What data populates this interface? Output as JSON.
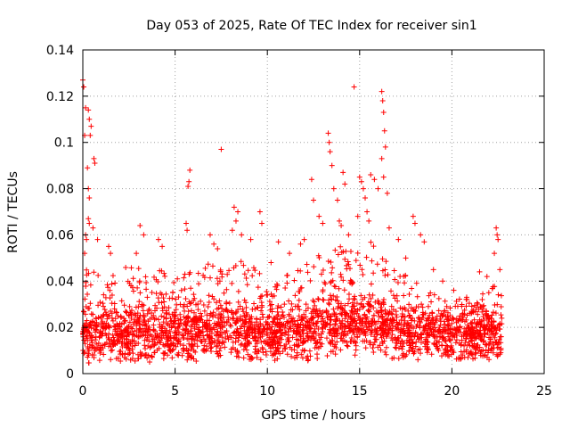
{
  "chart_data": {
    "type": "scatter",
    "title": "Day 053 of 2025, Rate Of TEC Index for receiver sin1",
    "xlabel": "GPS time / hours",
    "ylabel": "ROTI / TECUs",
    "xlim": [
      0,
      25
    ],
    "ylim": [
      0,
      0.14
    ],
    "x_ticks": [
      0,
      5,
      10,
      15,
      20,
      25
    ],
    "x_tick_labels": [
      "0",
      "5",
      "10",
      "15",
      "20",
      "25"
    ],
    "y_ticks": [
      0,
      0.02,
      0.04,
      0.06,
      0.08,
      0.1,
      0.12,
      0.14
    ],
    "y_tick_labels": [
      "0",
      "0.02",
      "0.04",
      "0.06",
      "0.08",
      "0.1",
      "0.12",
      "0.14"
    ],
    "grid": true,
    "marker": "plus",
    "color": "#ff0000",
    "series": [
      {
        "points": [
          [
            0.0,
            0.127
          ],
          [
            0.05,
            0.124
          ],
          [
            0.1,
            0.103
          ],
          [
            0.15,
            0.115
          ],
          [
            0.3,
            0.114
          ],
          [
            0.35,
            0.11
          ],
          [
            0.4,
            0.103
          ],
          [
            0.45,
            0.107
          ],
          [
            0.25,
            0.089
          ],
          [
            0.3,
            0.08
          ],
          [
            0.35,
            0.076
          ],
          [
            0.3,
            0.067
          ],
          [
            0.35,
            0.065
          ],
          [
            0.15,
            0.06
          ],
          [
            0.2,
            0.058
          ],
          [
            0.1,
            0.052
          ],
          [
            0.6,
            0.093
          ],
          [
            0.65,
            0.091
          ],
          [
            0.55,
            0.063
          ],
          [
            0.8,
            0.058
          ],
          [
            1.4,
            0.055
          ],
          [
            1.5,
            0.052
          ],
          [
            3.1,
            0.064
          ],
          [
            3.3,
            0.06
          ],
          [
            2.9,
            0.052
          ],
          [
            4.1,
            0.058
          ],
          [
            4.3,
            0.055
          ],
          [
            5.8,
            0.088
          ],
          [
            5.75,
            0.083
          ],
          [
            5.7,
            0.081
          ],
          [
            5.6,
            0.065
          ],
          [
            5.65,
            0.062
          ],
          [
            7.5,
            0.097
          ],
          [
            6.9,
            0.06
          ],
          [
            7.1,
            0.056
          ],
          [
            7.3,
            0.054
          ],
          [
            8.2,
            0.072
          ],
          [
            8.4,
            0.07
          ],
          [
            8.3,
            0.066
          ],
          [
            8.1,
            0.062
          ],
          [
            8.6,
            0.06
          ],
          [
            9.1,
            0.058
          ],
          [
            9.6,
            0.07
          ],
          [
            9.7,
            0.065
          ],
          [
            10.2,
            0.048
          ],
          [
            10.6,
            0.057
          ],
          [
            11.2,
            0.052
          ],
          [
            11.8,
            0.056
          ],
          [
            12.0,
            0.058
          ],
          [
            12.4,
            0.084
          ],
          [
            12.5,
            0.075
          ],
          [
            12.8,
            0.068
          ],
          [
            13.0,
            0.065
          ],
          [
            13.3,
            0.104
          ],
          [
            13.35,
            0.1
          ],
          [
            13.4,
            0.096
          ],
          [
            13.5,
            0.09
          ],
          [
            13.6,
            0.08
          ],
          [
            13.8,
            0.075
          ],
          [
            13.9,
            0.066
          ],
          [
            14.1,
            0.087
          ],
          [
            14.2,
            0.082
          ],
          [
            14.0,
            0.064
          ],
          [
            14.4,
            0.06
          ],
          [
            14.7,
            0.124
          ],
          [
            14.9,
            0.068
          ],
          [
            15.0,
            0.085
          ],
          [
            15.1,
            0.083
          ],
          [
            15.2,
            0.08
          ],
          [
            15.3,
            0.076
          ],
          [
            15.4,
            0.07
          ],
          [
            15.5,
            0.066
          ],
          [
            15.6,
            0.086
          ],
          [
            15.8,
            0.084
          ],
          [
            16.0,
            0.08
          ],
          [
            16.2,
            0.122
          ],
          [
            16.25,
            0.118
          ],
          [
            16.3,
            0.113
          ],
          [
            16.35,
            0.105
          ],
          [
            16.4,
            0.098
          ],
          [
            16.2,
            0.093
          ],
          [
            16.3,
            0.085
          ],
          [
            16.5,
            0.078
          ],
          [
            16.6,
            0.063
          ],
          [
            17.1,
            0.058
          ],
          [
            17.5,
            0.05
          ],
          [
            17.9,
            0.068
          ],
          [
            18.0,
            0.065
          ],
          [
            18.3,
            0.06
          ],
          [
            18.5,
            0.057
          ],
          [
            19.0,
            0.045
          ],
          [
            19.5,
            0.04
          ],
          [
            20.1,
            0.036
          ],
          [
            20.8,
            0.033
          ],
          [
            21.5,
            0.044
          ],
          [
            21.9,
            0.042
          ],
          [
            22.0,
            0.035
          ],
          [
            22.4,
            0.063
          ],
          [
            22.45,
            0.06
          ],
          [
            22.5,
            0.058
          ],
          [
            22.3,
            0.052
          ],
          [
            22.6,
            0.045
          ]
        ]
      }
    ],
    "dense_band": {
      "comment_hidden": false,
      "x_range": [
        0,
        22.7
      ],
      "envelope": [
        [
          0,
          0.004,
          0.05
        ],
        [
          1,
          0.005,
          0.045
        ],
        [
          2,
          0.005,
          0.045
        ],
        [
          3,
          0.005,
          0.048
        ],
        [
          4,
          0.005,
          0.045
        ],
        [
          5,
          0.005,
          0.045
        ],
        [
          6,
          0.005,
          0.045
        ],
        [
          7,
          0.006,
          0.048
        ],
        [
          8,
          0.006,
          0.05
        ],
        [
          9,
          0.006,
          0.048
        ],
        [
          10,
          0.005,
          0.04
        ],
        [
          11,
          0.005,
          0.042
        ],
        [
          12,
          0.005,
          0.05
        ],
        [
          13,
          0.006,
          0.055
        ],
        [
          14,
          0.006,
          0.055
        ],
        [
          15,
          0.007,
          0.06
        ],
        [
          16,
          0.007,
          0.058
        ],
        [
          17,
          0.006,
          0.045
        ],
        [
          18,
          0.006,
          0.04
        ],
        [
          19,
          0.006,
          0.035
        ],
        [
          20,
          0.006,
          0.032
        ],
        [
          21,
          0.006,
          0.035
        ],
        [
          22,
          0.006,
          0.04
        ],
        [
          22.7,
          0.008,
          0.035
        ]
      ],
      "median": [
        [
          0,
          0.016
        ],
        [
          2,
          0.017
        ],
        [
          4,
          0.018
        ],
        [
          6,
          0.018
        ],
        [
          8,
          0.019
        ],
        [
          10,
          0.016
        ],
        [
          12,
          0.018
        ],
        [
          14,
          0.02
        ],
        [
          15,
          0.022
        ],
        [
          16,
          0.021
        ],
        [
          18,
          0.017
        ],
        [
          20,
          0.016
        ],
        [
          22,
          0.017
        ],
        [
          22.7,
          0.017
        ]
      ]
    }
  }
}
